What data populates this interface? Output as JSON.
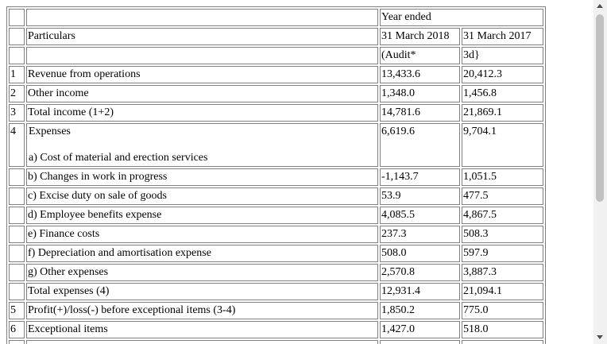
{
  "header": {
    "col_period": "Year ended",
    "col_particulars": "Particulars",
    "col_date1": "31 March 2018",
    "col_date2": "31 March 2017",
    "col_note1": "(Audit*",
    "col_note2": "3d}"
  },
  "rows": [
    {
      "no": "1",
      "label": "Revenue from operations",
      "v1": "13,433.6",
      "v2": "20,412.3"
    },
    {
      "no": "2",
      "label": "Other income",
      "v1": "1,348.0",
      "v2": "1,456.8"
    },
    {
      "no": "3",
      "label": "Total income (1+2)",
      "v1": "14,781.6",
      "v2": "21,869.1"
    }
  ],
  "expenses": {
    "no": "4",
    "heading": "Expenses",
    "items": [
      {
        "label": "a) Cost of material and erection services",
        "v1": "6,619.6",
        "v2": "9,704.1"
      },
      {
        "label": "b) Changes in work in progress",
        "v1": "-1,143.7",
        "v2": "1,051.5"
      },
      {
        "label": "c) Excise duty on sale of goods",
        "v1": "53.9",
        "v2": "477.5"
      },
      {
        "label": "d) Employee benefits expense",
        "v1": "4,085.5",
        "v2": "4,867.5"
      },
      {
        "label": "e) Finance costs",
        "v1": "237.3",
        "v2": "508.3"
      },
      {
        "label": "f) Depreciation and amortisation expense",
        "v1": "508.0",
        "v2": "597.9"
      },
      {
        "label": "g) Other expenses",
        "v1": "2,570.8",
        "v2": "3,887.3"
      },
      {
        "label": "Total expenses (4)",
        "v1": "12,931.4",
        "v2": "21,094.1"
      }
    ]
  },
  "rows_after": [
    {
      "no": "5",
      "label": "Profit(+)/loss(-) before exceptional items (3-4)",
      "v1": "1,850.2",
      "v2": "775.0"
    },
    {
      "no": "6",
      "label": "Exceptional items",
      "v1": "1,427.0",
      "v2": "518.0"
    }
  ]
}
